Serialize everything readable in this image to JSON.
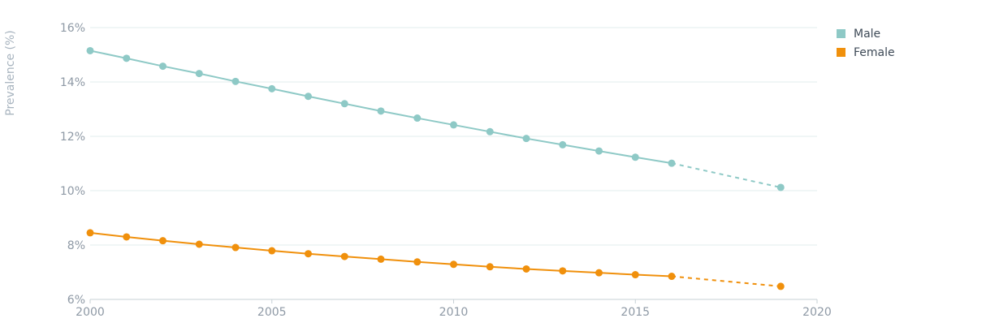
{
  "chart_data": {
    "type": "line",
    "title": "",
    "xlabel": "",
    "ylabel": "Prevalence (%)",
    "xlim": [
      2000,
      2020
    ],
    "ylim": [
      6,
      16
    ],
    "x_ticks": [
      2000,
      2005,
      2010,
      2015,
      2020
    ],
    "x_tick_labels": [
      "2000",
      "2005",
      "2010",
      "2015",
      "2020"
    ],
    "y_ticks": [
      6,
      8,
      10,
      12,
      14,
      16
    ],
    "y_tick_labels": [
      "6%",
      "8%",
      "10%",
      "12%",
      "14%",
      "16%"
    ],
    "grid": "horizontal",
    "legend_position": "top-right",
    "x": [
      2000,
      2001,
      2002,
      2003,
      2004,
      2005,
      2006,
      2007,
      2008,
      2009,
      2010,
      2011,
      2012,
      2013,
      2014,
      2015,
      2016,
      2019
    ],
    "projected_from_x": 2016,
    "series": [
      {
        "name": "Male",
        "color": "#8ec9c6",
        "values": [
          15.15,
          14.87,
          14.58,
          14.31,
          14.02,
          13.75,
          13.47,
          13.2,
          12.93,
          12.67,
          12.42,
          12.17,
          11.92,
          11.69,
          11.46,
          11.23,
          11.01,
          10.12
        ]
      },
      {
        "name": "Female",
        "color": "#f0900c",
        "values": [
          8.45,
          8.3,
          8.16,
          8.03,
          7.91,
          7.79,
          7.68,
          7.58,
          7.48,
          7.38,
          7.29,
          7.2,
          7.12,
          7.05,
          6.98,
          6.91,
          6.85,
          6.48
        ]
      }
    ]
  }
}
